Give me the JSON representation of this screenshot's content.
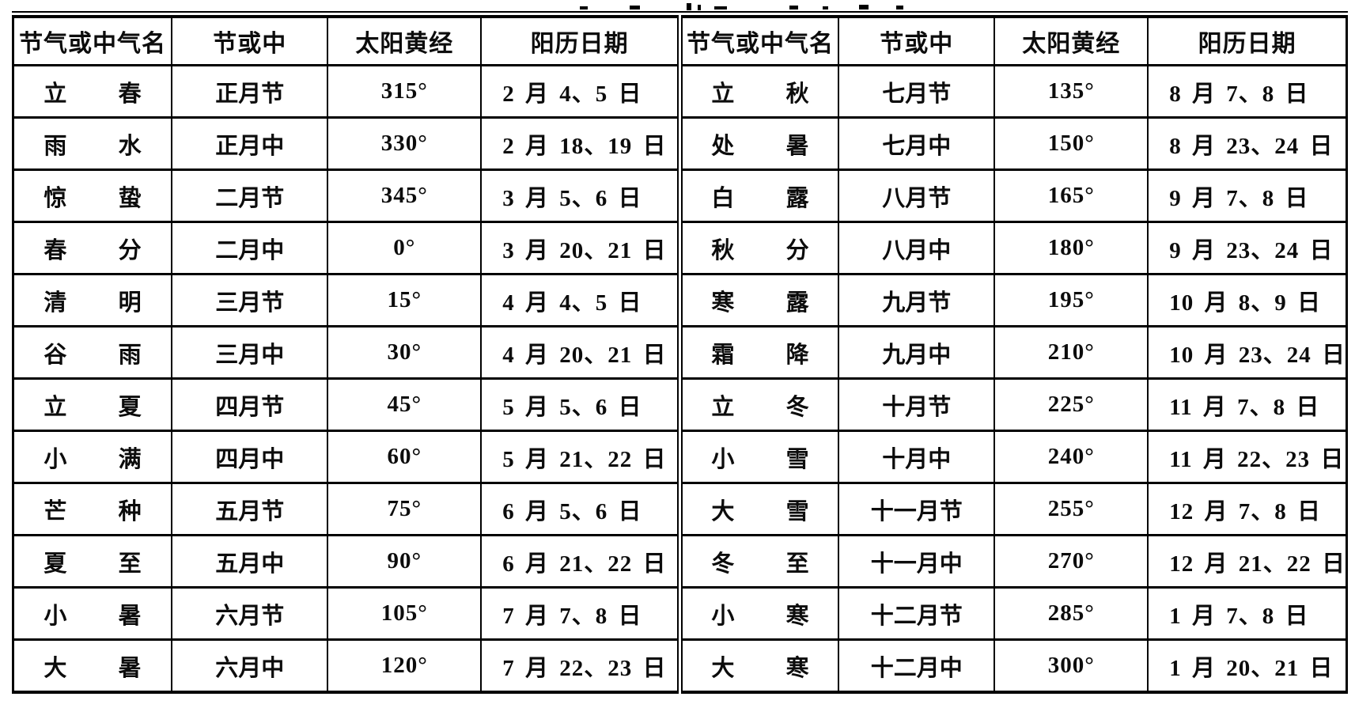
{
  "page": {
    "background": "#ffffff",
    "ink": "#0c0c0c"
  },
  "table": {
    "column_headers": [
      "节气或中气名",
      "节或中",
      "太阳黄经",
      "阳历日期"
    ],
    "left_rows": [
      {
        "name": "立 春",
        "jie_or_zhong": "正月节",
        "solar_longitude": "315°",
        "gregorian_date": "2 月 4、5 日"
      },
      {
        "name": "雨 水",
        "jie_or_zhong": "正月中",
        "solar_longitude": "330°",
        "gregorian_date": "2 月 18、19 日"
      },
      {
        "name": "惊 蛰",
        "jie_or_zhong": "二月节",
        "solar_longitude": "345°",
        "gregorian_date": "3 月 5、6 日"
      },
      {
        "name": "春 分",
        "jie_or_zhong": "二月中",
        "solar_longitude": "0°",
        "gregorian_date": "3 月 20、21 日"
      },
      {
        "name": "清 明",
        "jie_or_zhong": "三月节",
        "solar_longitude": "15°",
        "gregorian_date": "4 月 4、5 日"
      },
      {
        "name": "谷 雨",
        "jie_or_zhong": "三月中",
        "solar_longitude": "30°",
        "gregorian_date": "4 月 20、21 日"
      },
      {
        "name": "立 夏",
        "jie_or_zhong": "四月节",
        "solar_longitude": "45°",
        "gregorian_date": "5 月 5、6 日"
      },
      {
        "name": "小 满",
        "jie_or_zhong": "四月中",
        "solar_longitude": "60°",
        "gregorian_date": "5 月 21、22 日"
      },
      {
        "name": "芒 种",
        "jie_or_zhong": "五月节",
        "solar_longitude": "75°",
        "gregorian_date": "6 月 5、6 日"
      },
      {
        "name": "夏 至",
        "jie_or_zhong": "五月中",
        "solar_longitude": "90°",
        "gregorian_date": "6 月 21、22 日"
      },
      {
        "name": "小 暑",
        "jie_or_zhong": "六月节",
        "solar_longitude": "105°",
        "gregorian_date": "7 月 7、8 日"
      },
      {
        "name": "大 暑",
        "jie_or_zhong": "六月中",
        "solar_longitude": "120°",
        "gregorian_date": "7 月 22、23 日"
      }
    ],
    "right_rows": [
      {
        "name": "立 秋",
        "jie_or_zhong": "七月节",
        "solar_longitude": "135°",
        "gregorian_date": "8 月 7、8 日"
      },
      {
        "name": "处 暑",
        "jie_or_zhong": "七月中",
        "solar_longitude": "150°",
        "gregorian_date": "8 月 23、24 日"
      },
      {
        "name": "白 露",
        "jie_or_zhong": "八月节",
        "solar_longitude": "165°",
        "gregorian_date": "9 月 7、8 日"
      },
      {
        "name": "秋 分",
        "jie_or_zhong": "八月中",
        "solar_longitude": "180°",
        "gregorian_date": "9 月 23、24 日"
      },
      {
        "name": "寒 露",
        "jie_or_zhong": "九月节",
        "solar_longitude": "195°",
        "gregorian_date": "10 月 8、9 日"
      },
      {
        "name": "霜 降",
        "jie_or_zhong": "九月中",
        "solar_longitude": "210°",
        "gregorian_date": "10 月 23、24 日"
      },
      {
        "name": "立 冬",
        "jie_or_zhong": "十月节",
        "solar_longitude": "225°",
        "gregorian_date": "11 月 7、8 日"
      },
      {
        "name": "小 雪",
        "jie_or_zhong": "十月中",
        "solar_longitude": "240°",
        "gregorian_date": "11 月 22、23 日"
      },
      {
        "name": "大 雪",
        "jie_or_zhong": "十一月节",
        "solar_longitude": "255°",
        "gregorian_date": "12 月 7、8 日"
      },
      {
        "name": "冬 至",
        "jie_or_zhong": "十一月中",
        "solar_longitude": "270°",
        "gregorian_date": "12 月 21、22 日"
      },
      {
        "name": "小 寒",
        "jie_or_zhong": "十二月节",
        "solar_longitude": "285°",
        "gregorian_date": "1 月 7、8 日"
      },
      {
        "name": "大 寒",
        "jie_or_zhong": "十二月中",
        "solar_longitude": "300°",
        "gregorian_date": "1 月 20、21 日"
      }
    ]
  }
}
